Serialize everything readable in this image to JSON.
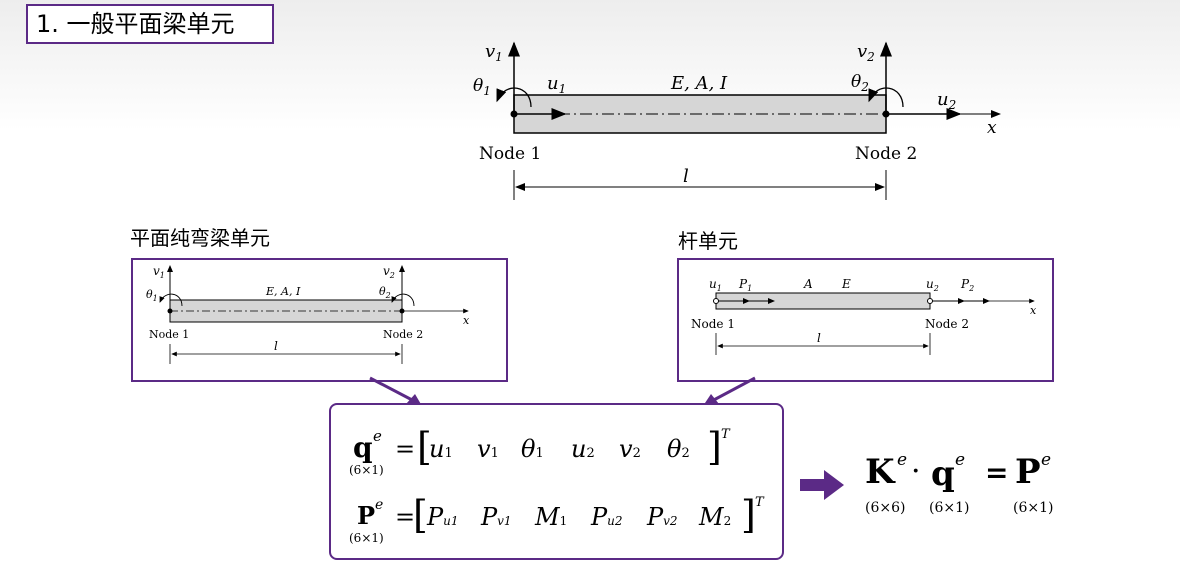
{
  "title": "1. 一般平面梁单元",
  "main_beam": {
    "v1": "v",
    "v1_sub": "1",
    "v2": "v",
    "v2_sub": "2",
    "theta1": "θ",
    "theta1_sub": "1",
    "theta2": "θ",
    "theta2_sub": "2",
    "u1": "u",
    "u1_sub": "1",
    "u2": "u",
    "u2_sub": "2",
    "props": "E, A, I",
    "x_axis": "x",
    "node1": "Node 1",
    "node2": "Node 2",
    "length": "l"
  },
  "bending_beam": {
    "label": "平面纯弯梁单元",
    "v1": "v",
    "v1_sub": "1",
    "v2": "v",
    "v2_sub": "2",
    "theta1": "θ",
    "theta1_sub": "1",
    "theta2": "θ",
    "theta2_sub": "2",
    "props": "E, A, I",
    "x_axis": "x",
    "node1": "Node 1",
    "node2": "Node 2",
    "length": "l"
  },
  "bar": {
    "label": "杆单元",
    "u1": "u",
    "u1_sub": "1",
    "P1": "P",
    "P1_sub": "1",
    "A": "A",
    "E": "E",
    "u2": "u",
    "u2_sub": "2",
    "P2": "P",
    "P2_sub": "2",
    "x_axis": "x",
    "node1": "Node 1",
    "node2": "Node 2",
    "length": "l"
  },
  "equations": {
    "q_symbol": "q",
    "q_sup": "e",
    "q_dim": "(6×1)",
    "q_terms": [
      "u",
      "v",
      "θ",
      "u",
      "v",
      "θ"
    ],
    "q_subs": [
      "1",
      "1",
      "1",
      "2",
      "2",
      "2"
    ],
    "P_symbol": "P",
    "P_sup": "e",
    "P_dim": "(6×1)",
    "P_terms": [
      "P",
      "P",
      "M",
      "P",
      "P",
      "M"
    ],
    "P_subs": [
      "u1",
      "v1",
      "1",
      "u2",
      "v2",
      "2"
    ],
    "transpose": "T",
    "equals": "="
  },
  "result": {
    "K": "K",
    "K_sup": "e",
    "K_dim": "(6×6)",
    "dot": "·",
    "q": "q",
    "q_sup": "e",
    "q_dim": "(6×1)",
    "equals": "=",
    "P": "P",
    "P_sup": "e",
    "P_dim": "(6×1)"
  },
  "colors": {
    "frame": "#5b2a86",
    "arrow": "#5b2a86",
    "beam_fill": "#d6d6d6"
  }
}
